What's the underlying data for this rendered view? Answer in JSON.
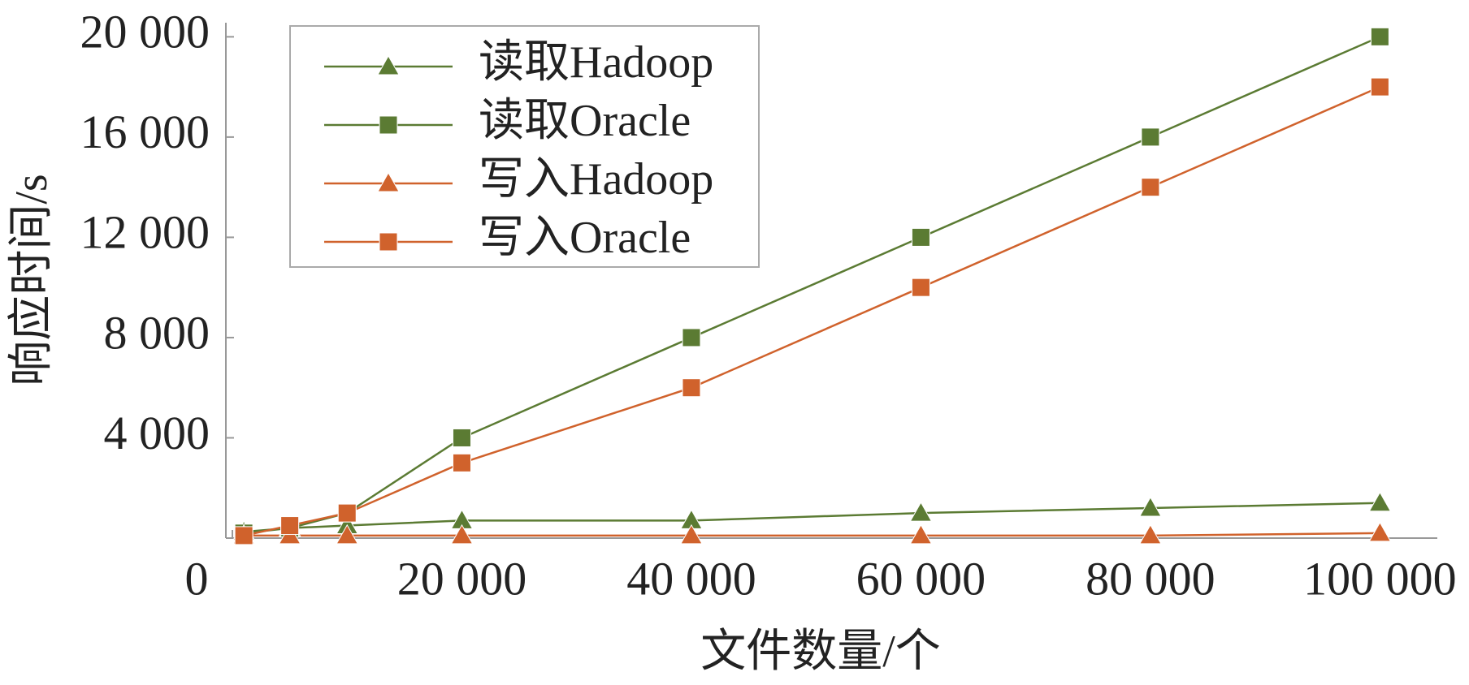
{
  "chart_data": {
    "type": "line",
    "x_label": "文件数量/个",
    "y_label": "响应时间/s",
    "x": [
      1000,
      5000,
      10000,
      20000,
      40000,
      60000,
      80000,
      100000
    ],
    "series": [
      {
        "name": "读取Hadoop",
        "color": "#5b7b33",
        "marker": "triangle",
        "values": [
          250,
          400,
          500,
          700,
          700,
          1000,
          1200,
          1400
        ]
      },
      {
        "name": "读取Oracle",
        "color": "#5b7b33",
        "marker": "square",
        "values": [
          200,
          400,
          1000,
          4000,
          8000,
          12000,
          16000,
          20000
        ]
      },
      {
        "name": "写入Hadoop",
        "color": "#d0622c",
        "marker": "triangle",
        "values": [
          100,
          100,
          100,
          100,
          100,
          100,
          100,
          200
        ]
      },
      {
        "name": "写入Oracle",
        "color": "#d0622c",
        "marker": "square",
        "values": [
          100,
          500,
          1000,
          3000,
          6000,
          10000,
          14000,
          18000
        ]
      }
    ],
    "xlim": [
      0,
      105000
    ],
    "ylim": [
      0,
      20400
    ],
    "xticks": [
      0,
      {
        "value": 20000,
        "label": "20 000"
      },
      {
        "value": 40000,
        "label": "40 000"
      },
      {
        "value": 60000,
        "label": "60 000"
      },
      {
        "value": 80000,
        "label": "80 000"
      },
      {
        "value": 100000,
        "label": "100 000"
      }
    ],
    "yticks": [
      {
        "value": 4000,
        "label": "4 000"
      },
      {
        "value": 8000,
        "label": "8 000"
      },
      {
        "value": 12000,
        "label": "12 000"
      },
      {
        "value": 16000,
        "label": "16 000"
      },
      {
        "value": 20000,
        "label": "20 000"
      }
    ],
    "legend": "upper-left"
  }
}
